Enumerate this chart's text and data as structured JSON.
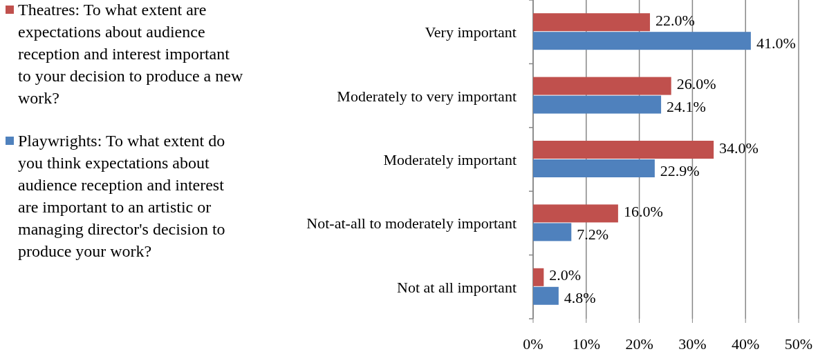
{
  "chart_data": {
    "type": "bar",
    "orientation": "horizontal",
    "categories": [
      "Very important",
      "Moderately to very important",
      "Moderately important",
      "Not-at-all to moderately important",
      "Not at all important"
    ],
    "series": [
      {
        "name": "Theatres: To what extent are expectations about audience reception and interest important to your decision to produce a new work?",
        "color": "#c0504d",
        "values": [
          22.0,
          26.0,
          34.0,
          16.0,
          2.0
        ],
        "value_labels": [
          "22.0%",
          "26.0%",
          "34.0%",
          "16.0%",
          "2.0%"
        ]
      },
      {
        "name": "Playwrights: To what extent do you think expectations about audience reception and interest are important to an artistic or managing director's decision to produce your work?",
        "color": "#4f81bd",
        "values": [
          41.0,
          24.1,
          22.9,
          7.2,
          4.8
        ],
        "value_labels": [
          "41.0%",
          "24.1%",
          "22.9%",
          "7.2%",
          "4.8%"
        ]
      }
    ],
    "xlim": [
      0,
      50
    ],
    "xticks": [
      {
        "value": 0,
        "label": "0%"
      },
      {
        "value": 10,
        "label": "10%"
      },
      {
        "value": 20,
        "label": "20%"
      },
      {
        "value": 30,
        "label": "30%"
      },
      {
        "value": 40,
        "label": "40%"
      },
      {
        "value": 50,
        "label": "50%"
      }
    ],
    "grid": "x",
    "legend": "left"
  }
}
